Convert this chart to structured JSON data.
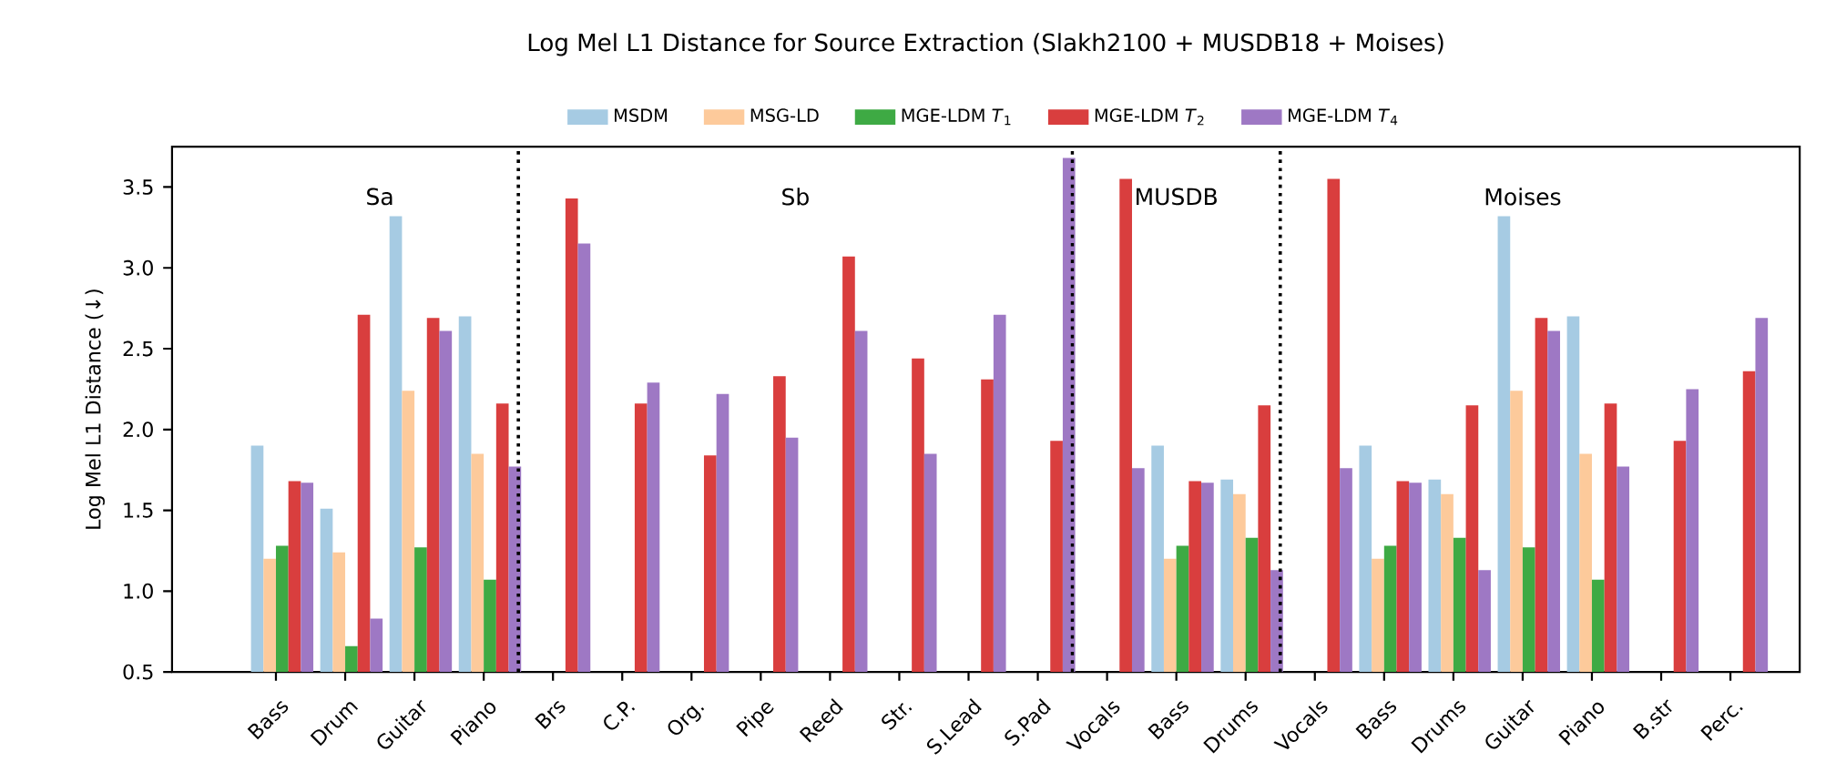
{
  "chart_data": {
    "type": "bar",
    "title": "Log Mel L1 Distance for Source Extraction (Slakh2100 + MUSDB18 + Moises)",
    "ylabel": "Log Mel L1 Distance (↓)",
    "categories": [
      "Bass",
      "Drum",
      "Guitar",
      "Piano",
      "Brs",
      "C.P.",
      "Org.",
      "Pipe",
      "Reed",
      "Str.",
      "S.Lead",
      "S.Pad",
      "Vocals",
      "Bass",
      "Drums",
      "Vocals",
      "Bass",
      "Drums",
      "Guitar",
      "Piano",
      "B.str",
      "Perc."
    ],
    "series": [
      {
        "name": "MSDM",
        "color": "#a6cbe3",
        "values": [
          1.9,
          1.51,
          3.32,
          2.7,
          null,
          null,
          null,
          null,
          null,
          null,
          null,
          null,
          null,
          1.9,
          1.69,
          null,
          1.9,
          1.69,
          3.32,
          2.7,
          null,
          null
        ]
      },
      {
        "name": "MSG-LD",
        "color": "#fdca9b",
        "values": [
          1.2,
          1.24,
          2.24,
          1.85,
          null,
          null,
          null,
          null,
          null,
          null,
          null,
          null,
          null,
          1.2,
          1.6,
          null,
          1.2,
          1.6,
          2.24,
          1.85,
          null,
          null
        ]
      },
      {
        "name": "MGE-LDM *T*$_{1}$",
        "color": "#3eaa44",
        "values": [
          1.28,
          0.66,
          1.27,
          1.07,
          null,
          null,
          null,
          null,
          null,
          null,
          null,
          null,
          null,
          1.28,
          1.33,
          null,
          1.28,
          1.33,
          1.27,
          1.07,
          null,
          null
        ]
      },
      {
        "name": "MGE-LDM *T*$_{2}$",
        "color": "#d93e3e",
        "values": [
          1.68,
          2.71,
          2.69,
          2.16,
          3.43,
          2.16,
          1.84,
          2.33,
          3.07,
          2.44,
          2.31,
          1.93,
          3.55,
          1.68,
          2.15,
          3.55,
          1.68,
          2.15,
          2.69,
          2.16,
          1.93,
          2.36
        ]
      },
      {
        "name": "MGE-LDM *T*$_{4}$",
        "color": "#9e78c4",
        "values": [
          1.67,
          0.83,
          2.61,
          1.77,
          3.15,
          2.29,
          2.22,
          1.95,
          2.61,
          1.85,
          2.71,
          3.68,
          1.76,
          1.67,
          1.13,
          1.76,
          1.67,
          1.13,
          2.61,
          1.77,
          2.25,
          2.69
        ]
      }
    ],
    "ylim": [
      0.5,
      3.75
    ],
    "yticks": [
      0.5,
      {
        "value": 1.0,
        "label": "1.0"
      },
      1.5,
      {
        "value": 2.0,
        "label": "2.0"
      },
      2.5,
      {
        "value": 3.0,
        "label": "3.0"
      },
      3.5
    ],
    "annotations": [
      "Sa",
      "Sb",
      "MUSDB",
      "Moises"
    ],
    "legend": "top"
  }
}
